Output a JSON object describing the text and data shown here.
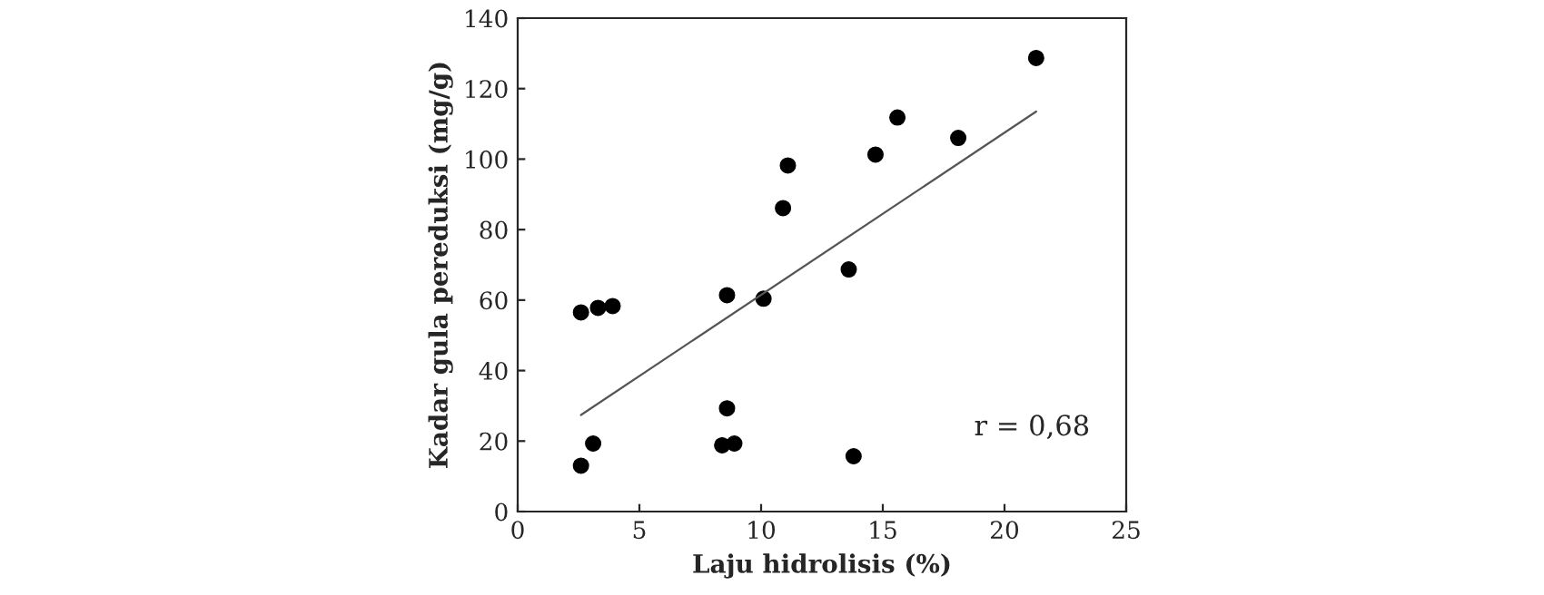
{
  "chart_data": {
    "type": "scatter",
    "xlabel": "Laju hidrolisis (%)",
    "ylabel": "Kadar gula pereduksi (mg/g)",
    "xlim": [
      0,
      25
    ],
    "xticks": [
      0,
      5,
      10,
      15,
      20,
      25
    ],
    "ylim": [
      0,
      140
    ],
    "yticks": [
      0,
      20,
      40,
      60,
      80,
      100,
      120,
      140
    ],
    "grid": false,
    "annotations": [
      "r = 0,68"
    ],
    "series": [
      {
        "marker": "circle",
        "color": "#000000",
        "x": [
          2.6,
          3.1,
          2.6,
          3.3,
          3.9,
          8.6,
          8.6,
          8.4,
          8.9,
          10.1,
          10.9,
          11.1,
          13.6,
          13.8,
          14.7,
          15.6,
          18.1,
          21.3
        ],
        "values": [
          13.0,
          19.3,
          56.5,
          57.8,
          58.3,
          61.4,
          29.3,
          18.8,
          19.3,
          60.4,
          86.1,
          98.2,
          68.7,
          15.7,
          101.3,
          111.8,
          106.0,
          128.7
        ]
      },
      {
        "type": "line",
        "color": "#555555",
        "x": [
          2.6,
          21.3
        ],
        "values": [
          27.4,
          113.5
        ]
      }
    ]
  }
}
